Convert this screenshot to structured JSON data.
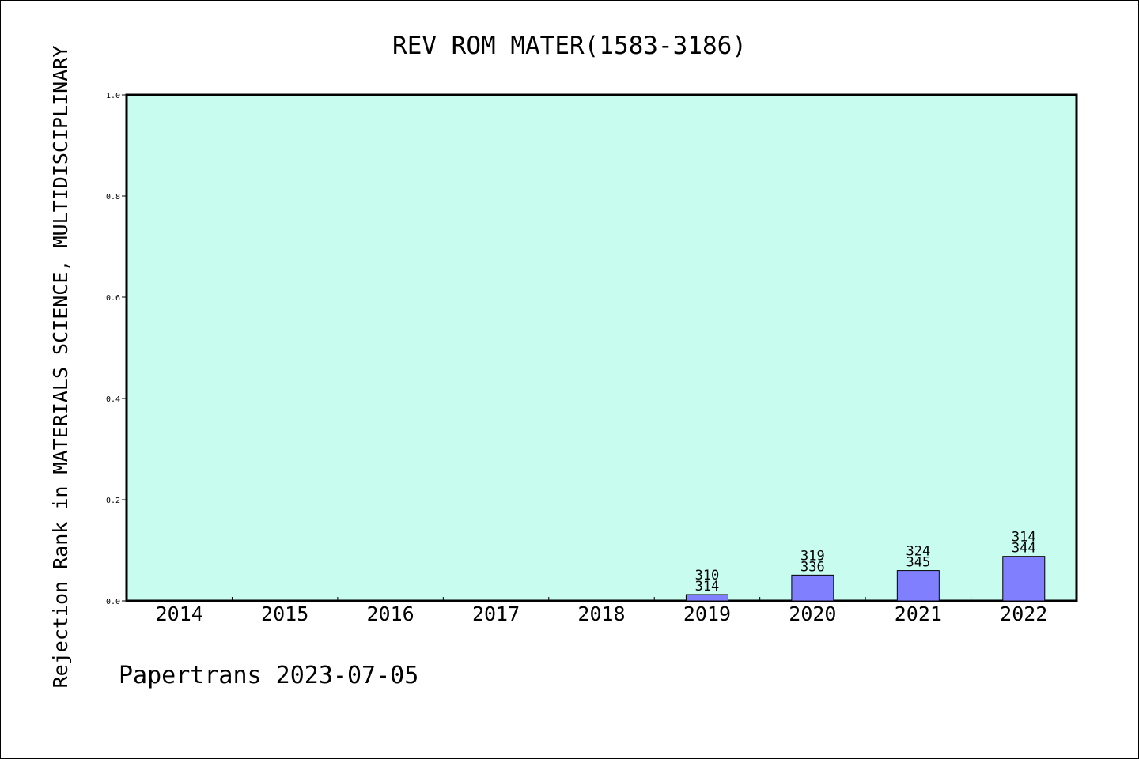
{
  "chart_data": {
    "type": "bar",
    "title": "REV ROM MATER(1583-3186)",
    "ylabel": "Rejection Rank in MATERIALS SCIENCE, MULTIDISCIPLINARY",
    "xlabel": "",
    "categories": [
      "2014",
      "2015",
      "2016",
      "2017",
      "2018",
      "2019",
      "2020",
      "2021",
      "2022"
    ],
    "values": [
      0,
      0,
      0,
      0,
      0,
      0.0125,
      0.051,
      0.06,
      0.088
    ],
    "bar_labels": [
      null,
      null,
      null,
      null,
      null,
      [
        "310",
        "314"
      ],
      [
        "319",
        "336"
      ],
      [
        "324",
        "345"
      ],
      [
        "314",
        "344"
      ]
    ],
    "yticks": [
      "0.0",
      "0.2",
      "0.4",
      "0.6",
      "0.8",
      "1.0"
    ],
    "ylim": [
      0,
      1
    ],
    "grid": false,
    "plot_background": "#c8fcee",
    "bar_color": "#8080ff",
    "footer": "Papertrans 2023-07-05"
  }
}
